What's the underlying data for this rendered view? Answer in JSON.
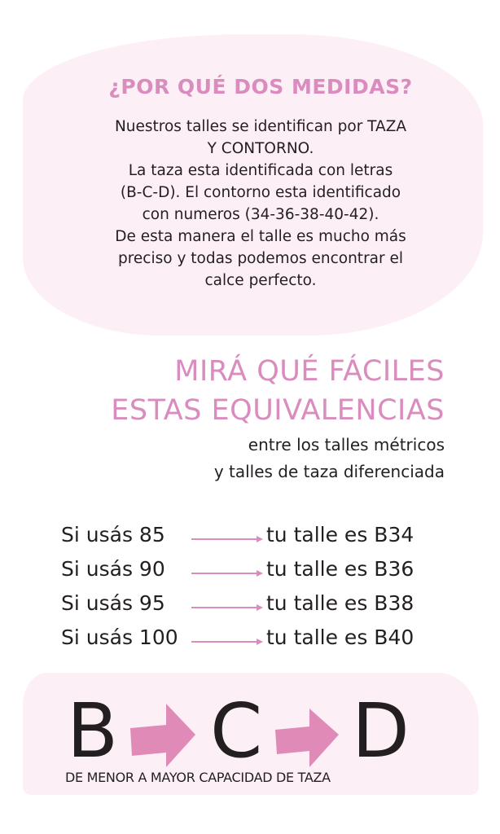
{
  "intro": {
    "title": "¿POR QUÉ DOS MEDIDAS?",
    "lines": [
      "Nuestros talles se identifican por TAZA",
      "Y CONTORNO.",
      "La taza esta identificada con letras",
      "(B-C-D). El contorno esta identificado",
      "con numeros (34-36-38-40-42).",
      "De esta manera el talle es mucho más",
      "preciso y todas podemos encontrar el",
      "calce perfecto."
    ]
  },
  "equivalences": {
    "heading": [
      "MIRÁ QUÉ FÁCILES",
      "ESTAS EQUIVALENCIAS"
    ],
    "subtitle": [
      "entre los talles métricos",
      "y talles de taza diferenciada"
    ],
    "rows": [
      {
        "from": "Si usás 85",
        "to": "tu talle es B34"
      },
      {
        "from": "Si usás 90",
        "to": "tu talle es B36"
      },
      {
        "from": "Si usás 95",
        "to": "tu talle es B38"
      },
      {
        "from": "Si usás 100",
        "to": "tu talle es B40"
      }
    ]
  },
  "cups": {
    "letters": [
      "B",
      "C",
      "D"
    ],
    "caption": "DE MENOR A MAYOR CAPACIDAD DE TAZA"
  },
  "colors": {
    "accent": "#d98cbd",
    "blob": "#fcf0f6",
    "text": "#231f20"
  }
}
